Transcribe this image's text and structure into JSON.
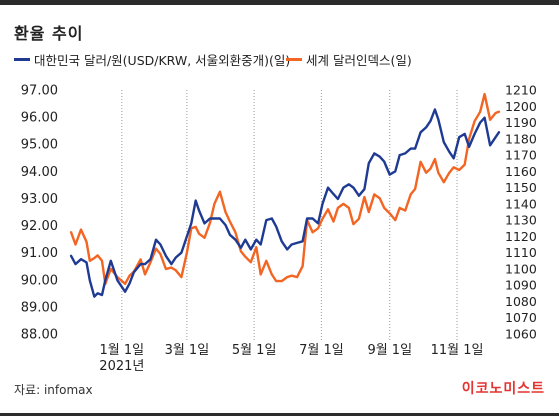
{
  "brand": "이코노미스트",
  "source": "자료: infomax",
  "chart_data": {
    "type": "line",
    "title": "환율 추이",
    "x_range": [
      "2020-11-15",
      "2021-12-10"
    ],
    "x_ticks": [
      {
        "date": "2021-01-01",
        "label": "1월 1일",
        "sublabel": "2021년"
      },
      {
        "date": "2021-03-01",
        "label": "3월 1일"
      },
      {
        "date": "2021-05-01",
        "label": "5월 1일"
      },
      {
        "date": "2021-07-01",
        "label": "7월 1일"
      },
      {
        "date": "2021-09-01",
        "label": "9월 1일"
      },
      {
        "date": "2021-11-01",
        "label": "11월 1일"
      }
    ],
    "x_grid": "dotted",
    "left_axis": {
      "min": 88.0,
      "max": 97.0,
      "ticks": [
        "88.00",
        "89.00",
        "90.00",
        "91.00",
        "92.00",
        "93.00",
        "94.00",
        "95.00",
        "96.00",
        "97.00"
      ]
    },
    "right_axis": {
      "min": 1060,
      "max": 1210,
      "ticks": [
        "1060",
        "1070",
        "1080",
        "1090",
        "1100",
        "1110",
        "1120",
        "1130",
        "1140",
        "1150",
        "1160",
        "1170",
        "1180",
        "1190",
        "1200",
        "1210"
      ]
    },
    "legend_position": "top",
    "series": [
      {
        "name": "대한민국 달러/원(USD/KRW, 서울외환중개)(일)",
        "axis": "right",
        "color": "#1f3a93",
        "points": [
          [
            "2020-11-16",
            1108
          ],
          [
            "2020-11-20",
            1103
          ],
          [
            "2020-11-25",
            1106
          ],
          [
            "2020-11-30",
            1104
          ],
          [
            "2020-12-03",
            1093
          ],
          [
            "2020-12-07",
            1083
          ],
          [
            "2020-12-10",
            1085
          ],
          [
            "2020-12-14",
            1084
          ],
          [
            "2020-12-17",
            1093
          ],
          [
            "2020-12-22",
            1105
          ],
          [
            "2020-12-28",
            1093
          ],
          [
            "2021-01-04",
            1086
          ],
          [
            "2021-01-08",
            1091
          ],
          [
            "2021-01-12",
            1098
          ],
          [
            "2021-01-18",
            1103
          ],
          [
            "2021-01-22",
            1103
          ],
          [
            "2021-01-27",
            1106
          ],
          [
            "2021-02-01",
            1118
          ],
          [
            "2021-02-05",
            1115
          ],
          [
            "2021-02-10",
            1108
          ],
          [
            "2021-02-15",
            1103
          ],
          [
            "2021-02-19",
            1107
          ],
          [
            "2021-02-24",
            1110
          ],
          [
            "2021-03-01",
            1120
          ],
          [
            "2021-03-05",
            1128
          ],
          [
            "2021-03-09",
            1142
          ],
          [
            "2021-03-12",
            1136
          ],
          [
            "2021-03-17",
            1128
          ],
          [
            "2021-03-22",
            1131
          ],
          [
            "2021-03-26",
            1131
          ],
          [
            "2021-03-31",
            1131
          ],
          [
            "2021-04-05",
            1127
          ],
          [
            "2021-04-09",
            1121
          ],
          [
            "2021-04-14",
            1118
          ],
          [
            "2021-04-19",
            1113
          ],
          [
            "2021-04-23",
            1118
          ],
          [
            "2021-04-28",
            1112
          ],
          [
            "2021-05-03",
            1118
          ],
          [
            "2021-05-07",
            1115
          ],
          [
            "2021-05-12",
            1130
          ],
          [
            "2021-05-17",
            1131
          ],
          [
            "2021-05-21",
            1126
          ],
          [
            "2021-05-26",
            1117
          ],
          [
            "2021-05-31",
            1112
          ],
          [
            "2021-06-04",
            1115
          ],
          [
            "2021-06-09",
            1116
          ],
          [
            "2021-06-14",
            1117
          ],
          [
            "2021-06-18",
            1131
          ],
          [
            "2021-06-23",
            1131
          ],
          [
            "2021-06-28",
            1128
          ],
          [
            "2021-07-02",
            1140
          ],
          [
            "2021-07-07",
            1150
          ],
          [
            "2021-07-12",
            1146
          ],
          [
            "2021-07-16",
            1143
          ],
          [
            "2021-07-21",
            1150
          ],
          [
            "2021-07-26",
            1152
          ],
          [
            "2021-07-30",
            1150
          ],
          [
            "2021-08-04",
            1145
          ],
          [
            "2021-08-09",
            1149
          ],
          [
            "2021-08-13",
            1165
          ],
          [
            "2021-08-18",
            1171
          ],
          [
            "2021-08-23",
            1169
          ],
          [
            "2021-08-27",
            1166
          ],
          [
            "2021-09-01",
            1158
          ],
          [
            "2021-09-06",
            1160
          ],
          [
            "2021-09-10",
            1170
          ],
          [
            "2021-09-15",
            1171
          ],
          [
            "2021-09-20",
            1174
          ],
          [
            "2021-09-24",
            1174
          ],
          [
            "2021-09-29",
            1184
          ],
          [
            "2021-10-04",
            1187
          ],
          [
            "2021-10-08",
            1191
          ],
          [
            "2021-10-12",
            1198
          ],
          [
            "2021-10-15",
            1192
          ],
          [
            "2021-10-20",
            1178
          ],
          [
            "2021-10-25",
            1172
          ],
          [
            "2021-10-29",
            1168
          ],
          [
            "2021-11-03",
            1181
          ],
          [
            "2021-11-08",
            1183
          ],
          [
            "2021-11-12",
            1175
          ],
          [
            "2021-11-17",
            1183
          ],
          [
            "2021-11-22",
            1190
          ],
          [
            "2021-11-26",
            1193
          ],
          [
            "2021-12-01",
            1176
          ],
          [
            "2021-12-06",
            1181
          ],
          [
            "2021-12-09",
            1184
          ]
        ]
      },
      {
        "name": "세계 달러인덱스(일)",
        "axis": "left",
        "color": "#f26522",
        "points": [
          [
            "2020-11-16",
            91.75
          ],
          [
            "2020-11-20",
            91.3
          ],
          [
            "2020-11-25",
            91.85
          ],
          [
            "2020-11-30",
            91.4
          ],
          [
            "2020-12-03",
            90.7
          ],
          [
            "2020-12-07",
            90.8
          ],
          [
            "2020-12-10",
            90.9
          ],
          [
            "2020-12-14",
            90.7
          ],
          [
            "2020-12-17",
            89.85
          ],
          [
            "2020-12-22",
            90.4
          ],
          [
            "2020-12-28",
            90.1
          ],
          [
            "2021-01-04",
            89.85
          ],
          [
            "2021-01-08",
            90.15
          ],
          [
            "2021-01-12",
            90.3
          ],
          [
            "2021-01-18",
            90.75
          ],
          [
            "2021-01-22",
            90.2
          ],
          [
            "2021-01-27",
            90.65
          ],
          [
            "2021-02-01",
            91.15
          ],
          [
            "2021-02-05",
            90.95
          ],
          [
            "2021-02-10",
            90.4
          ],
          [
            "2021-02-15",
            90.45
          ],
          [
            "2021-02-19",
            90.35
          ],
          [
            "2021-02-24",
            90.1
          ],
          [
            "2021-03-01",
            91.0
          ],
          [
            "2021-03-05",
            91.9
          ],
          [
            "2021-03-09",
            91.95
          ],
          [
            "2021-03-12",
            91.7
          ],
          [
            "2021-03-17",
            91.55
          ],
          [
            "2021-03-22",
            92.1
          ],
          [
            "2021-03-26",
            92.8
          ],
          [
            "2021-03-31",
            93.25
          ],
          [
            "2021-04-05",
            92.5
          ],
          [
            "2021-04-09",
            92.15
          ],
          [
            "2021-04-14",
            91.75
          ],
          [
            "2021-04-19",
            91.05
          ],
          [
            "2021-04-23",
            90.85
          ],
          [
            "2021-04-28",
            90.65
          ],
          [
            "2021-05-03",
            91.2
          ],
          [
            "2021-05-07",
            90.2
          ],
          [
            "2021-05-12",
            90.7
          ],
          [
            "2021-05-17",
            90.2
          ],
          [
            "2021-05-21",
            89.95
          ],
          [
            "2021-05-26",
            89.95
          ],
          [
            "2021-05-31",
            90.1
          ],
          [
            "2021-06-04",
            90.15
          ],
          [
            "2021-06-09",
            90.1
          ],
          [
            "2021-06-14",
            90.5
          ],
          [
            "2021-06-18",
            92.2
          ],
          [
            "2021-06-23",
            91.75
          ],
          [
            "2021-06-28",
            91.9
          ],
          [
            "2021-07-02",
            92.25
          ],
          [
            "2021-07-07",
            92.6
          ],
          [
            "2021-07-12",
            92.15
          ],
          [
            "2021-07-16",
            92.65
          ],
          [
            "2021-07-21",
            92.8
          ],
          [
            "2021-07-26",
            92.65
          ],
          [
            "2021-07-30",
            92.05
          ],
          [
            "2021-08-04",
            92.25
          ],
          [
            "2021-08-09",
            93.05
          ],
          [
            "2021-08-13",
            92.5
          ],
          [
            "2021-08-18",
            93.15
          ],
          [
            "2021-08-23",
            93.0
          ],
          [
            "2021-08-27",
            92.65
          ],
          [
            "2021-09-01",
            92.45
          ],
          [
            "2021-09-06",
            92.2
          ],
          [
            "2021-09-10",
            92.65
          ],
          [
            "2021-09-15",
            92.55
          ],
          [
            "2021-09-20",
            93.15
          ],
          [
            "2021-09-24",
            93.35
          ],
          [
            "2021-09-29",
            94.35
          ],
          [
            "2021-10-04",
            93.95
          ],
          [
            "2021-10-08",
            94.1
          ],
          [
            "2021-10-12",
            94.45
          ],
          [
            "2021-10-15",
            93.95
          ],
          [
            "2021-10-20",
            93.6
          ],
          [
            "2021-10-25",
            93.95
          ],
          [
            "2021-10-29",
            94.15
          ],
          [
            "2021-11-03",
            94.05
          ],
          [
            "2021-11-08",
            94.25
          ],
          [
            "2021-11-12",
            95.2
          ],
          [
            "2021-11-17",
            95.85
          ],
          [
            "2021-11-22",
            96.2
          ],
          [
            "2021-11-26",
            96.85
          ],
          [
            "2021-12-01",
            95.9
          ],
          [
            "2021-12-06",
            96.15
          ],
          [
            "2021-12-09",
            96.2
          ]
        ]
      }
    ]
  }
}
